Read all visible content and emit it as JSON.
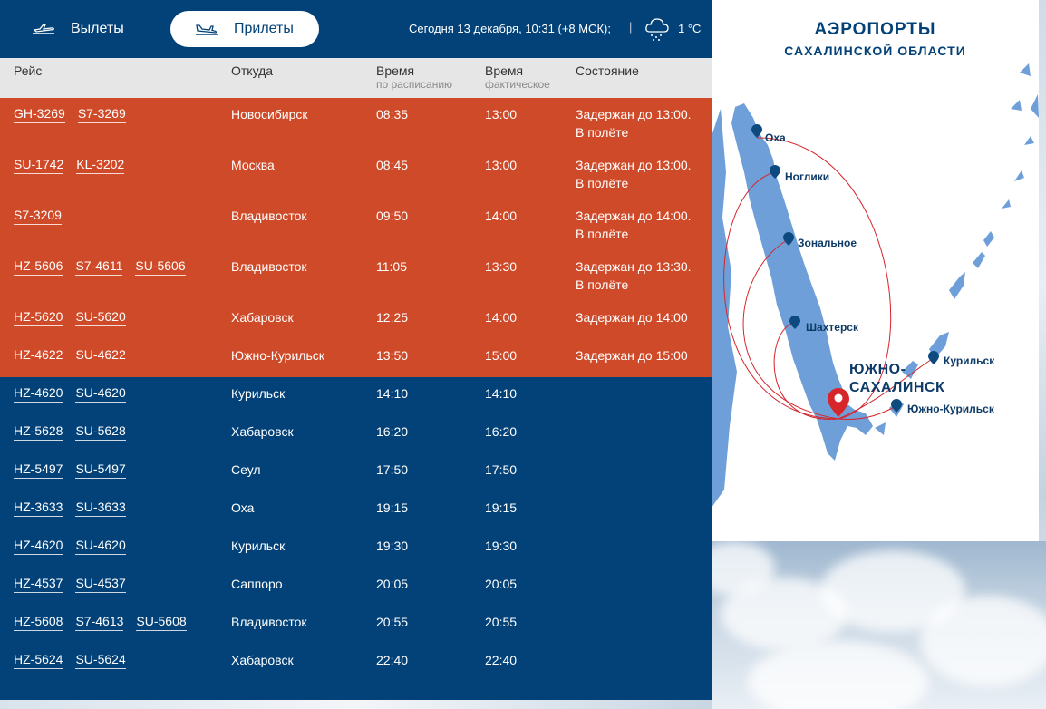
{
  "tabs": {
    "departures_label": "Вылеты",
    "arrivals_label": "Прилеты"
  },
  "header": {
    "date_text": "Сегодня 13 декабря, 10:31 (+8 МСК);",
    "separator": "|",
    "temperature": "1 °C",
    "weather_icon": "snow-cloud-icon"
  },
  "columns": {
    "flight": "Рейс",
    "from": "Откуда",
    "scheduled": "Время",
    "scheduled_sub": "по расписанию",
    "actual": "Время",
    "actual_sub": "фактическое",
    "status": "Состояние"
  },
  "colors": {
    "board": "#034278",
    "delayed": "#cf4a28",
    "header_bg": "#e6e6e6",
    "route": "#d6252b",
    "land": "#6f9fd8"
  },
  "flights": [
    {
      "codes": [
        "GH-3269",
        "S7-3269"
      ],
      "from": "Новосибирск",
      "scheduled": "08:35",
      "actual": "13:00",
      "status": "Задержан до 13:00.",
      "status2": "В полёте",
      "delayed": true
    },
    {
      "codes": [
        "SU-1742",
        "KL-3202"
      ],
      "from": "Москва",
      "scheduled": "08:45",
      "actual": "13:00",
      "status": "Задержан до 13:00.",
      "status2": "В полёте",
      "delayed": true
    },
    {
      "codes": [
        "S7-3209"
      ],
      "from": "Владивосток",
      "scheduled": "09:50",
      "actual": "14:00",
      "status": "Задержан до 14:00.",
      "status2": "В полёте",
      "delayed": true
    },
    {
      "codes": [
        "HZ-5606",
        "S7-4611",
        "SU-5606"
      ],
      "from": "Владивосток",
      "scheduled": "11:05",
      "actual": "13:30",
      "status": "Задержан до 13:30.",
      "status2": "В полёте",
      "delayed": true
    },
    {
      "codes": [
        "HZ-5620",
        "SU-5620"
      ],
      "from": "Хабаровск",
      "scheduled": "12:25",
      "actual": "14:00",
      "status": "Задержан до 14:00",
      "status2": "",
      "delayed": true
    },
    {
      "codes": [
        "HZ-4622",
        "SU-4622"
      ],
      "from": "Южно-Курильск",
      "scheduled": "13:50",
      "actual": "15:00",
      "status": "Задержан до 15:00",
      "status2": "",
      "delayed": true
    },
    {
      "codes": [
        "HZ-4620",
        "SU-4620"
      ],
      "from": "Курильск",
      "scheduled": "14:10",
      "actual": "14:10",
      "status": "",
      "status2": "",
      "delayed": false
    },
    {
      "codes": [
        "HZ-5628",
        "SU-5628"
      ],
      "from": "Хабаровск",
      "scheduled": "16:20",
      "actual": "16:20",
      "status": "",
      "status2": "",
      "delayed": false
    },
    {
      "codes": [
        "HZ-5497",
        "SU-5497"
      ],
      "from": "Сеул",
      "scheduled": "17:50",
      "actual": "17:50",
      "status": "",
      "status2": "",
      "delayed": false
    },
    {
      "codes": [
        "HZ-3633",
        "SU-3633"
      ],
      "from": "Оха",
      "scheduled": "19:15",
      "actual": "19:15",
      "status": "",
      "status2": "",
      "delayed": false
    },
    {
      "codes": [
        "HZ-4620",
        "SU-4620"
      ],
      "from": "Курильск",
      "scheduled": "19:30",
      "actual": "19:30",
      "status": "",
      "status2": "",
      "delayed": false
    },
    {
      "codes": [
        "HZ-4537",
        "SU-4537"
      ],
      "from": "Саппоро",
      "scheduled": "20:05",
      "actual": "20:05",
      "status": "",
      "status2": "",
      "delayed": false
    },
    {
      "codes": [
        "HZ-5608",
        "S7-4613",
        "SU-5608"
      ],
      "from": "Владивосток",
      "scheduled": "20:55",
      "actual": "20:55",
      "status": "",
      "status2": "",
      "delayed": false
    },
    {
      "codes": [
        "HZ-5624",
        "SU-5624"
      ],
      "from": "Хабаровск",
      "scheduled": "22:40",
      "actual": "22:40",
      "status": "",
      "status2": "",
      "delayed": false
    }
  ],
  "map": {
    "title": "АЭРОПОРТЫ",
    "subtitle": "САХАЛИНСКОЙ ОБЛАСТИ",
    "hub": "ЮЖНО-САХАЛИНСК",
    "hub_line1": "ЮЖНО-",
    "hub_line2": "САХАЛИНСК",
    "airports": [
      "Оха",
      "Ноглики",
      "Зональное",
      "Шахтерск",
      "Курильск",
      "Южно-Курильск"
    ]
  }
}
